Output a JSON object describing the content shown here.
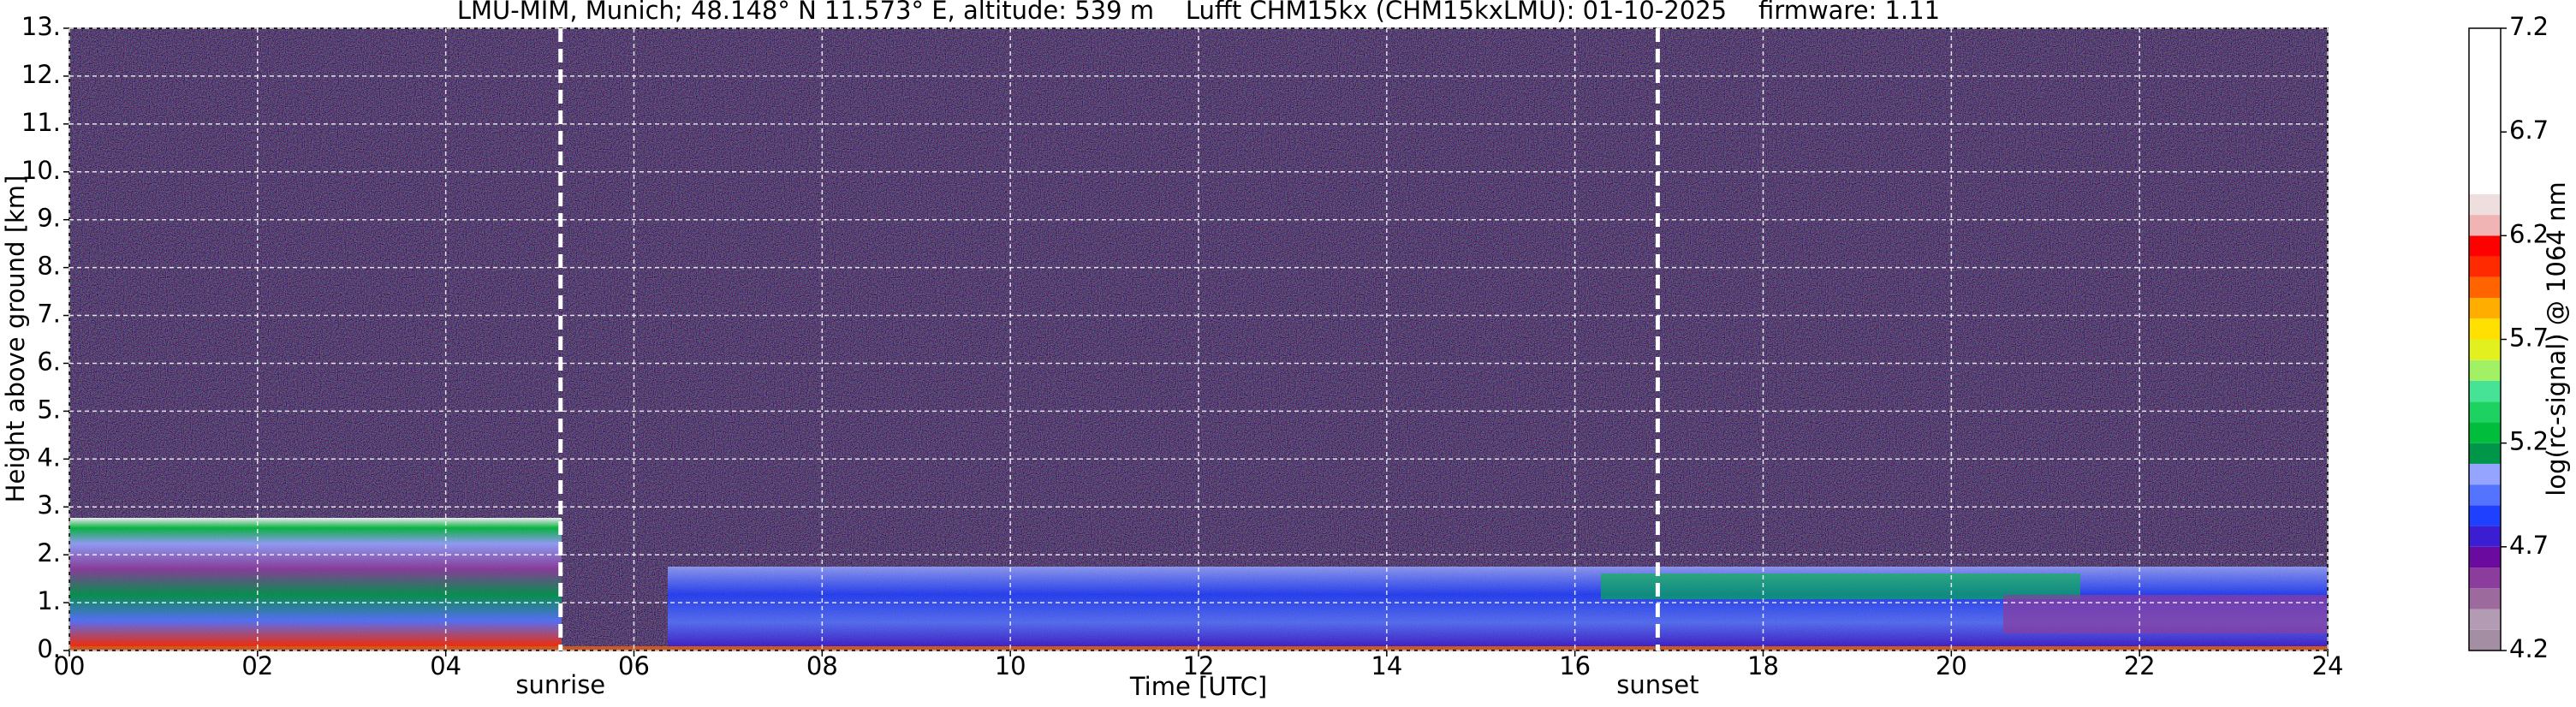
{
  "chart_data": {
    "type": "heatmap",
    "title": "LMU-MIM, Munich; 48.148° N 11.573° E, altitude: 539 m    Lufft CHM15kx (CHM15kxLMU): 01-10-2025    firmware: 1.11",
    "x_label": "Time [UTC]",
    "y_label": "Height above ground [km]",
    "xlim": [
      0,
      24
    ],
    "xticks": [
      {
        "value": 0,
        "label": "00"
      },
      {
        "value": 2,
        "label": "02"
      },
      {
        "value": 4,
        "label": "04"
      },
      {
        "value": 6,
        "label": "06"
      },
      {
        "value": 8,
        "label": "08"
      },
      10,
      12,
      14,
      16,
      18,
      20,
      22,
      24
    ],
    "ylim": [
      0,
      13
    ],
    "yticks": [
      {
        "value": 0,
        "label": "0."
      },
      {
        "value": 1,
        "label": "1."
      },
      {
        "value": 2,
        "label": "2."
      },
      {
        "value": 3,
        "label": "3."
      },
      {
        "value": 4,
        "label": "4."
      },
      {
        "value": 5,
        "label": "5."
      },
      {
        "value": 6,
        "label": "6."
      },
      {
        "value": 7,
        "label": "7."
      },
      {
        "value": 8,
        "label": "8."
      },
      {
        "value": 9,
        "label": "9."
      },
      {
        "value": 10,
        "label": "10."
      },
      {
        "value": 11,
        "label": "11."
      },
      {
        "value": 12,
        "label": "12."
      },
      {
        "value": 13,
        "label": "13."
      }
    ],
    "grid": true,
    "annotations": [
      {
        "x": 5.22,
        "label": "sunrise"
      },
      {
        "x": 16.88,
        "label": "sunset"
      }
    ],
    "colorbar": {
      "label": "log(rc-signal) @ 1064 nm",
      "lim": [
        4.2,
        7.2
      ],
      "ticks": [
        4.2,
        4.7,
        5.2,
        5.7,
        6.2,
        6.7,
        7.2
      ],
      "levels": [
        4.2,
        4.3,
        4.4,
        4.5,
        4.6,
        4.7,
        4.8,
        4.9,
        5.0,
        5.1,
        5.2,
        5.3,
        5.4,
        5.5,
        5.6,
        5.7,
        5.8,
        5.9,
        6.0,
        6.1,
        6.2,
        6.3,
        6.4,
        7.2
      ],
      "colors": [
        "#a48ea4",
        "#b39bb3",
        "#9c6a9c",
        "#8c3c9c",
        "#6a0a9e",
        "#3c1ed2",
        "#2040ff",
        "#5474ff",
        "#94a4ff",
        "#00964a",
        "#00be3c",
        "#1ed262",
        "#46e296",
        "#a2f064",
        "#e2f020",
        "#ffe000",
        "#ffae00",
        "#ff6400",
        "#ff2a00",
        "#ff0000",
        "#f0b4b4",
        "#eedede",
        "#ffffff"
      ]
    }
  }
}
